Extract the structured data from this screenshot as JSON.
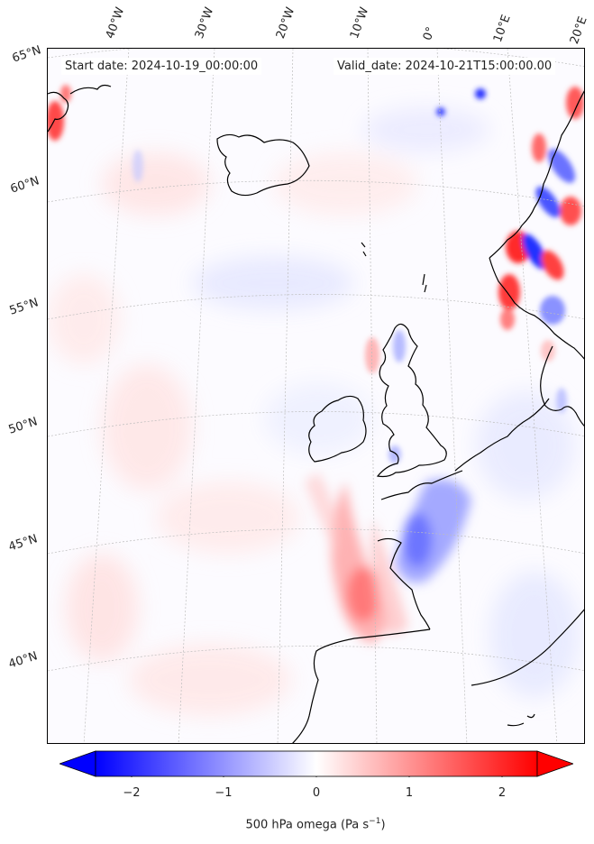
{
  "header": {
    "start_date": "Start date: 2024-10-19_00:00:00",
    "valid_date": "Valid_date: 2024-10-21T15:00:00.00"
  },
  "longitude_labels": [
    "40°W",
    "30°W",
    "20°W",
    "10°W",
    "0°",
    "10°E",
    "20°E"
  ],
  "latitude_labels": [
    "65°N",
    "60°N",
    "55°N",
    "50°N",
    "45°N",
    "40°N"
  ],
  "colorbar": {
    "ticks": [
      "−2",
      "−1",
      "0",
      "1",
      "2"
    ],
    "range": [
      -2.6,
      2.6
    ],
    "label": "500 hPa omega (Pa s",
    "label_sup": "−1",
    "label_end": ")",
    "min_color": "#0000ff",
    "mid_color": "#ffffff",
    "max_color": "#ff0000",
    "extend": "both"
  },
  "map": {
    "field": "500 hPa omega",
    "projection": "conic",
    "colormap": "bwr",
    "gridlines": true,
    "coastlines": true
  }
}
